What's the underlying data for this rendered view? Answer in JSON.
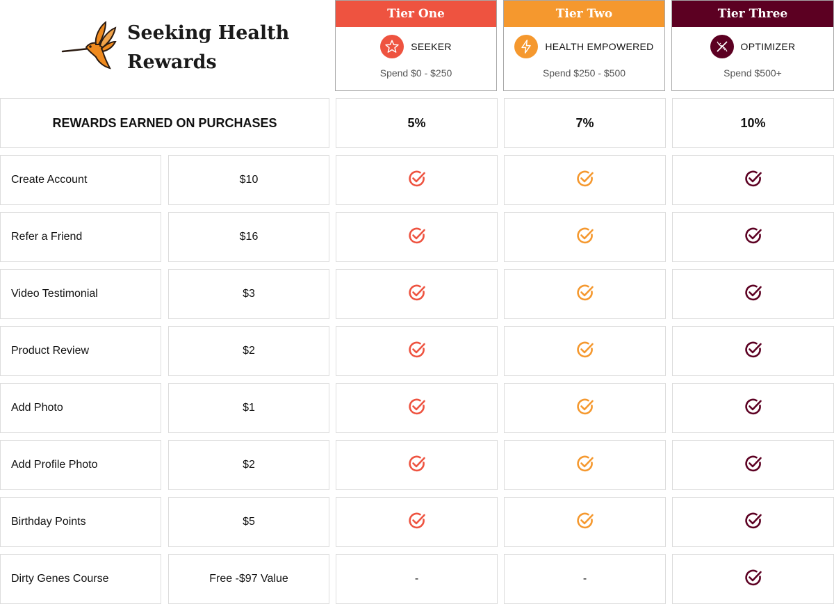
{
  "brand": {
    "line1": "Seeking Health",
    "line2": "Rewards"
  },
  "colors": {
    "tier_one": "#ee5340",
    "tier_two": "#f5982e",
    "tier_three": "#5c0022"
  },
  "tiers": [
    {
      "header": "Tier One",
      "name": "SEEKER",
      "spend": "Spend $0 - $250",
      "rate": "5%",
      "icon": "star-icon"
    },
    {
      "header": "Tier Two",
      "name": "HEALTH EMPOWERED",
      "spend": "Spend $250 - $500",
      "rate": "7%",
      "icon": "lightning-icon"
    },
    {
      "header": "Tier Three",
      "name": "OPTIMIZER",
      "spend": "Spend $500+",
      "rate": "10%",
      "icon": "dna-icon"
    }
  ],
  "rewards_header": "REWARDS EARNED ON PURCHASES",
  "rows": [
    {
      "label": "Create Account",
      "value": "$10",
      "tiers": [
        "check",
        "check",
        "check"
      ]
    },
    {
      "label": "Refer a Friend",
      "value": "$16",
      "tiers": [
        "check",
        "check",
        "check"
      ]
    },
    {
      "label": "Video Testimonial",
      "value": "$3",
      "tiers": [
        "check",
        "check",
        "check"
      ]
    },
    {
      "label": "Product Review",
      "value": "$2",
      "tiers": [
        "check",
        "check",
        "check"
      ]
    },
    {
      "label": "Add Photo",
      "value": "$1",
      "tiers": [
        "check",
        "check",
        "check"
      ]
    },
    {
      "label": "Add Profile Photo",
      "value": "$2",
      "tiers": [
        "check",
        "check",
        "check"
      ]
    },
    {
      "label": "Birthday Points",
      "value": "$5",
      "tiers": [
        "check",
        "check",
        "check"
      ]
    },
    {
      "label": "Dirty Genes Course",
      "value": "Free -$97 Value",
      "tiers": [
        "-",
        "-",
        "check"
      ]
    }
  ]
}
